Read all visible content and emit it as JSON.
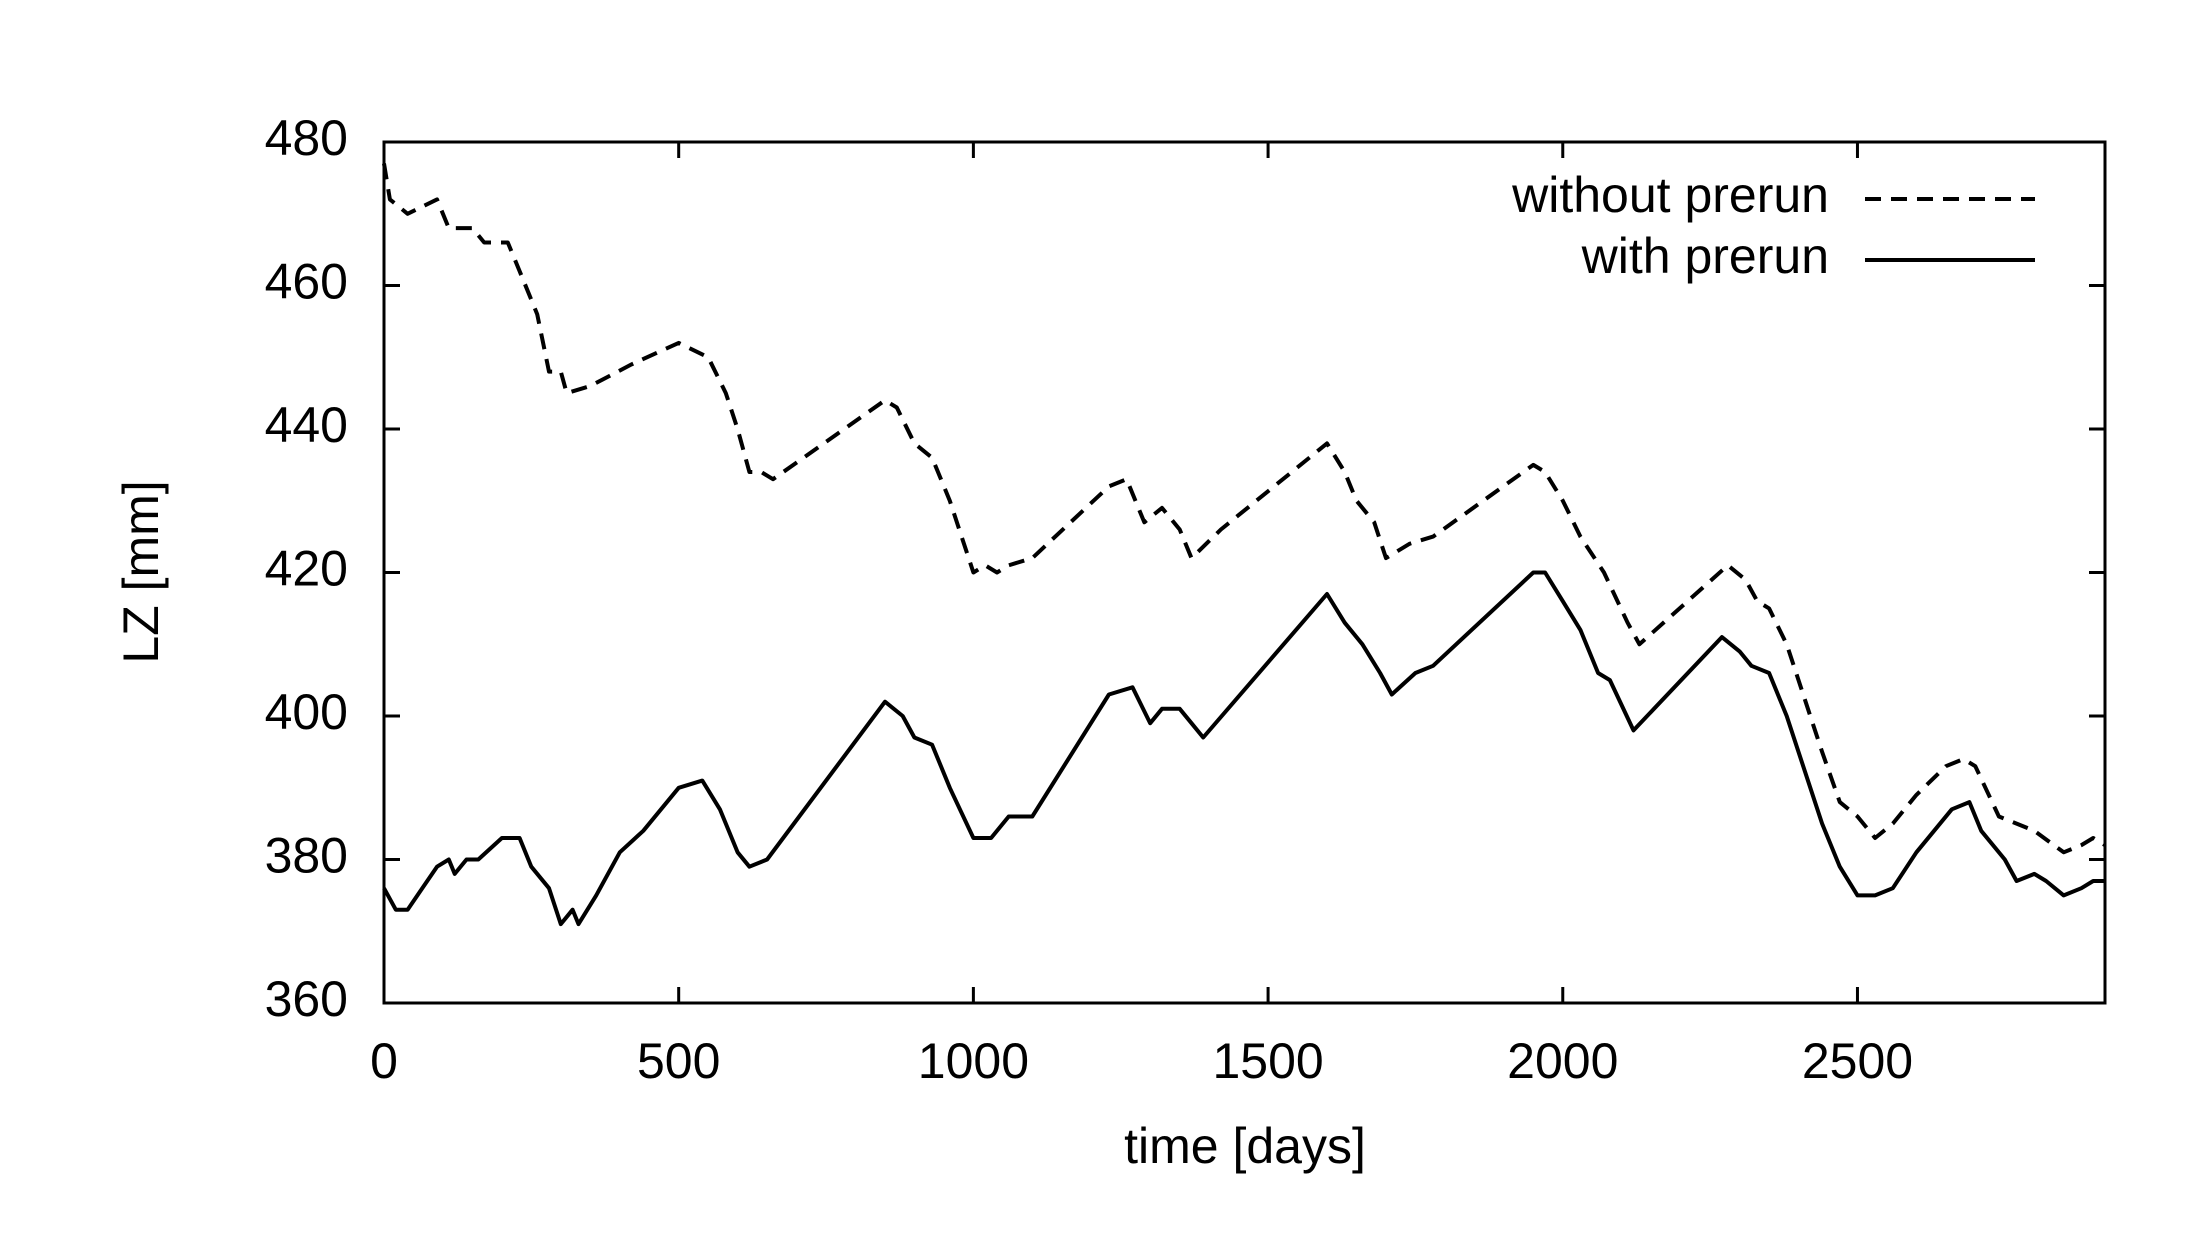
{
  "chart_data": {
    "type": "line",
    "xlabel": "time [days]",
    "ylabel": "LZ [mm]",
    "xlim": [
      0,
      2920
    ],
    "ylim": [
      360,
      480
    ],
    "xticks": [
      0,
      500,
      1000,
      1500,
      2000,
      2500
    ],
    "yticks": [
      360,
      380,
      400,
      420,
      440,
      460,
      480
    ],
    "legend": "upper right",
    "series": [
      {
        "name": "without prerun",
        "color": "#000000",
        "dash": "dashed",
        "x": [
          0,
          10,
          40,
          90,
          110,
          150,
          170,
          210,
          230,
          260,
          280,
          300,
          310,
          350,
          420,
          500,
          550,
          580,
          600,
          620,
          640,
          660,
          850,
          870,
          900,
          930,
          960,
          1000,
          1020,
          1040,
          1060,
          1100,
          1230,
          1260,
          1290,
          1320,
          1350,
          1370,
          1420,
          1600,
          1630,
          1650,
          1680,
          1700,
          1740,
          1780,
          1950,
          1970,
          2000,
          2030,
          2070,
          2110,
          2130,
          2280,
          2310,
          2330,
          2350,
          2380,
          2400,
          2440,
          2470,
          2500,
          2530,
          2560,
          2600,
          2650,
          2680,
          2700,
          2740,
          2770,
          2800,
          2850,
          2880,
          2900,
          2920
        ],
        "values": [
          477,
          472,
          470,
          472,
          468,
          468,
          466,
          466,
          462,
          456,
          448,
          448,
          445,
          446,
          449,
          452,
          450,
          445,
          440,
          434,
          434,
          433,
          444,
          443,
          438,
          436,
          430,
          420,
          421,
          420,
          421,
          422,
          432,
          433,
          427,
          429,
          426,
          422,
          426,
          438,
          434,
          430,
          427,
          422,
          424,
          425,
          435,
          434,
          430,
          425,
          420,
          413,
          410,
          421,
          419,
          416,
          415,
          410,
          405,
          395,
          388,
          386,
          383,
          385,
          389,
          393,
          394,
          393,
          386,
          385,
          384,
          381,
          382,
          383,
          382
        ]
      },
      {
        "name": "with prerun",
        "color": "#000000",
        "dash": "solid",
        "x": [
          0,
          20,
          40,
          90,
          110,
          120,
          140,
          160,
          200,
          230,
          250,
          280,
          300,
          320,
          330,
          360,
          400,
          440,
          500,
          540,
          570,
          600,
          620,
          650,
          850,
          880,
          900,
          930,
          960,
          1000,
          1030,
          1060,
          1100,
          1230,
          1270,
          1300,
          1320,
          1350,
          1370,
          1390,
          1600,
          1630,
          1660,
          1690,
          1710,
          1750,
          1780,
          1950,
          1970,
          2000,
          2030,
          2060,
          2080,
          2120,
          2270,
          2300,
          2320,
          2350,
          2380,
          2400,
          2440,
          2470,
          2500,
          2530,
          2560,
          2600,
          2660,
          2690,
          2710,
          2750,
          2770,
          2800,
          2820,
          2850,
          2880,
          2900,
          2920
        ],
        "values": [
          376,
          373,
          373,
          379,
          380,
          378,
          380,
          380,
          383,
          383,
          379,
          376,
          371,
          373,
          371,
          375,
          381,
          384,
          390,
          391,
          387,
          381,
          379,
          380,
          402,
          400,
          397,
          396,
          390,
          383,
          383,
          386,
          386,
          403,
          404,
          399,
          401,
          401,
          399,
          397,
          417,
          413,
          410,
          406,
          403,
          406,
          407,
          420,
          420,
          416,
          412,
          406,
          405,
          398,
          411,
          409,
          407,
          406,
          400,
          395,
          385,
          379,
          375,
          375,
          376,
          381,
          387,
          388,
          384,
          380,
          377,
          378,
          377,
          375,
          376,
          377,
          377
        ]
      }
    ]
  }
}
